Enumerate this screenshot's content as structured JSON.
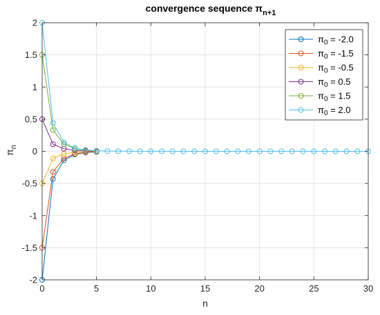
{
  "chart_data": {
    "type": "line",
    "title": {
      "main": "convergence sequence π",
      "sub": "n+1"
    },
    "xlabel": "n",
    "ylabel": {
      "main": "π",
      "sub": "n"
    },
    "xlim": [
      0,
      30
    ],
    "ylim": [
      -2,
      2
    ],
    "xticks": [
      "0",
      "5",
      "10",
      "15",
      "20",
      "25",
      "30"
    ],
    "yticks": [
      "-2",
      "-1.5",
      "-1",
      "-0.5",
      "0",
      "0.5",
      "1",
      "1.5",
      "2"
    ],
    "grid": true,
    "legend_position": "top-right",
    "x": [
      0,
      1,
      2,
      3,
      4,
      5,
      6,
      7,
      8,
      9,
      10,
      11,
      12,
      13,
      14,
      15,
      16,
      17,
      18,
      19,
      20,
      21,
      22,
      23,
      24,
      25,
      26,
      27,
      28,
      29,
      30
    ],
    "series": [
      {
        "legend": {
          "pre": "π",
          "sub": "0",
          "post": " = -2.0"
        },
        "color": "#0072BD",
        "x": [
          0,
          1,
          2,
          3,
          4,
          5
        ],
        "values": [
          -2.0,
          -0.43,
          -0.14,
          -0.05,
          -0.02,
          -0.01
        ]
      },
      {
        "legend": {
          "pre": "π",
          "sub": "0",
          "post": " = -1.5"
        },
        "color": "#D95319",
        "x": [
          0,
          1,
          2,
          3,
          4,
          5
        ],
        "values": [
          -1.5,
          -0.32,
          -0.11,
          -0.04,
          -0.015,
          -0.005
        ]
      },
      {
        "legend": {
          "pre": "π",
          "sub": "0",
          "post": " = -0.5"
        },
        "color": "#EDB120",
        "x": [
          0,
          1,
          2,
          3,
          4,
          5
        ],
        "values": [
          -0.5,
          -0.11,
          -0.04,
          -0.015,
          -0.005,
          -0.002
        ]
      },
      {
        "legend": {
          "pre": "π",
          "sub": "0",
          "post": " = 0.5"
        },
        "color": "#7E2F8E",
        "x": [
          0,
          1,
          2,
          3,
          4,
          5
        ],
        "values": [
          0.5,
          0.11,
          0.04,
          0.015,
          0.005,
          0.002
        ]
      },
      {
        "legend": {
          "pre": "π",
          "sub": "0",
          "post": " = 1.5"
        },
        "color": "#77AC30",
        "x": [
          0,
          1,
          2,
          3,
          4,
          5
        ],
        "values": [
          1.5,
          0.33,
          0.11,
          0.04,
          0.015,
          0.005
        ]
      },
      {
        "legend": {
          "pre": "π",
          "sub": "0",
          "post": " = 2.0"
        },
        "color": "#4DBEEE",
        "x": [
          0,
          1,
          2,
          3,
          4,
          5,
          6,
          7,
          8,
          9,
          10,
          11,
          12,
          13,
          14,
          15,
          16,
          17,
          18,
          19,
          20,
          21,
          22,
          23,
          24,
          25,
          26,
          27,
          28,
          29,
          30
        ],
        "values": [
          2.0,
          0.44,
          0.14,
          0.05,
          0.02,
          0.01,
          0.004,
          0.002,
          0.001,
          0,
          0,
          0,
          0,
          0,
          0,
          0,
          0,
          0,
          0,
          0,
          0,
          0,
          0,
          0,
          0,
          0,
          0,
          0,
          0,
          0,
          0
        ]
      }
    ]
  }
}
